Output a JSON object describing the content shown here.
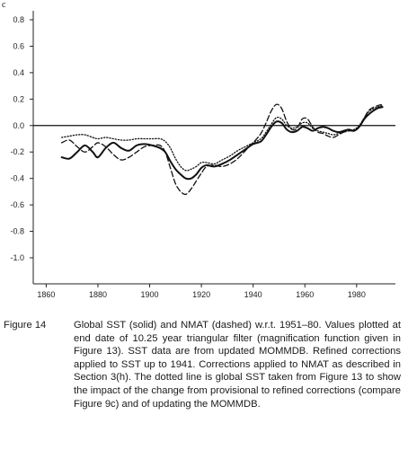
{
  "panel_label": "c",
  "caption": {
    "label": "Figure 14",
    "text": "Global SST (solid) and NMAT (dashed) w.r.t. 1951–80. Values plotted at end date of 10.25 year triangular filter (magnification function given in Figure 13). SST data are from updated MOMMDB. Refined corrections applied to SST up to 1941. Corrections applied to NMAT as described in Section 3(h). The dotted line is global SST taken from Figure 13 to show the impact of the change from provisional to refined corrections (compare Figure 9c) and of updating the MOMMDB."
  },
  "chart_data": {
    "type": "line",
    "title": "",
    "xlabel": "",
    "ylabel": "",
    "xlim": [
      1855,
      1995
    ],
    "ylim": [
      -1.1,
      0.85
    ],
    "x_ticks": [
      1860,
      1880,
      1900,
      1920,
      1940,
      1960,
      1980
    ],
    "x_tick_labels": [
      "1860",
      "1880",
      "1900",
      "1920",
      "1940",
      "1960",
      "1980"
    ],
    "y_ticks": [
      0.8,
      0.6,
      0.4,
      0.2,
      0.0,
      -0.2,
      -0.4,
      -0.6,
      -0.8,
      -1.0
    ],
    "y_tick_labels": [
      "0.8",
      "0.6",
      "0.4",
      "0.2",
      "0.0",
      "-0.2",
      "-0.4",
      "-0.6",
      "-0.8",
      "-1.0"
    ],
    "zero_line": 0.0,
    "series": [
      {
        "style": "solid",
        "color": "#111111",
        "x": [
          1866,
          1869,
          1872,
          1875,
          1878,
          1880,
          1883,
          1886,
          1889,
          1892,
          1895,
          1898,
          1901,
          1904,
          1906,
          1908,
          1910,
          1912,
          1914,
          1916,
          1918,
          1920,
          1922,
          1925,
          1928,
          1931,
          1934,
          1937,
          1940,
          1943,
          1945,
          1947,
          1949,
          1951,
          1953,
          1955,
          1957,
          1959,
          1961,
          1963,
          1965,
          1967,
          1969,
          1971,
          1973,
          1975,
          1977,
          1979,
          1981,
          1983,
          1985,
          1988,
          1990
        ],
        "y": [
          -0.24,
          -0.25,
          -0.2,
          -0.15,
          -0.2,
          -0.24,
          -0.17,
          -0.13,
          -0.17,
          -0.19,
          -0.15,
          -0.14,
          -0.15,
          -0.17,
          -0.2,
          -0.27,
          -0.33,
          -0.37,
          -0.4,
          -0.4,
          -0.37,
          -0.32,
          -0.3,
          -0.31,
          -0.29,
          -0.26,
          -0.22,
          -0.18,
          -0.14,
          -0.12,
          -0.07,
          -0.01,
          0.03,
          0.02,
          -0.03,
          -0.05,
          -0.04,
          -0.01,
          -0.02,
          -0.04,
          -0.02,
          -0.01,
          -0.02,
          -0.04,
          -0.05,
          -0.04,
          -0.03,
          -0.04,
          -0.01,
          0.05,
          0.09,
          0.13,
          0.14
        ]
      },
      {
        "style": "dashed",
        "color": "#111111",
        "x": [
          1866,
          1869,
          1872,
          1875,
          1878,
          1880,
          1883,
          1886,
          1889,
          1892,
          1895,
          1898,
          1901,
          1904,
          1906,
          1908,
          1910,
          1912,
          1914,
          1916,
          1918,
          1920,
          1922,
          1925,
          1928,
          1931,
          1934,
          1937,
          1940,
          1943,
          1945,
          1947,
          1949,
          1951,
          1953,
          1955,
          1957,
          1959,
          1961,
          1963,
          1965,
          1967,
          1969,
          1971,
          1973,
          1975,
          1977,
          1979,
          1981,
          1983,
          1985,
          1988,
          1990
        ],
        "y": [
          -0.13,
          -0.11,
          -0.16,
          -0.2,
          -0.16,
          -0.13,
          -0.16,
          -0.22,
          -0.26,
          -0.24,
          -0.2,
          -0.16,
          -0.15,
          -0.15,
          -0.2,
          -0.32,
          -0.44,
          -0.5,
          -0.52,
          -0.48,
          -0.42,
          -0.36,
          -0.31,
          -0.3,
          -0.31,
          -0.29,
          -0.25,
          -0.19,
          -0.13,
          -0.06,
          0.02,
          0.11,
          0.16,
          0.13,
          0.03,
          -0.03,
          -0.02,
          0.05,
          0.05,
          -0.01,
          -0.05,
          -0.06,
          -0.08,
          -0.09,
          -0.07,
          -0.05,
          -0.04,
          -0.04,
          -0.01,
          0.06,
          0.12,
          0.15,
          0.16
        ]
      },
      {
        "style": "dotted",
        "color": "#111111",
        "x": [
          1866,
          1869,
          1872,
          1875,
          1878,
          1880,
          1883,
          1886,
          1889,
          1892,
          1895,
          1898,
          1901,
          1904,
          1906,
          1908,
          1910,
          1912,
          1914,
          1916,
          1918,
          1920,
          1922,
          1925,
          1928,
          1931,
          1934,
          1937,
          1940,
          1943,
          1945,
          1947,
          1949,
          1951,
          1953,
          1955,
          1957,
          1959,
          1961,
          1963,
          1965,
          1967,
          1969,
          1971,
          1973,
          1975,
          1977,
          1979,
          1981,
          1983,
          1985,
          1988,
          1990
        ],
        "y": [
          -0.09,
          -0.08,
          -0.07,
          -0.07,
          -0.09,
          -0.1,
          -0.09,
          -0.1,
          -0.11,
          -0.11,
          -0.1,
          -0.1,
          -0.1,
          -0.1,
          -0.12,
          -0.17,
          -0.25,
          -0.31,
          -0.34,
          -0.33,
          -0.31,
          -0.28,
          -0.28,
          -0.29,
          -0.26,
          -0.23,
          -0.19,
          -0.16,
          -0.13,
          -0.1,
          -0.05,
          0.01,
          0.06,
          0.05,
          0.0,
          -0.02,
          -0.01,
          0.02,
          0.02,
          -0.02,
          -0.04,
          -0.05,
          -0.06,
          -0.07,
          -0.06,
          -0.05,
          -0.04,
          -0.03,
          0.0,
          0.06,
          0.11,
          0.14,
          0.15
        ]
      }
    ]
  }
}
